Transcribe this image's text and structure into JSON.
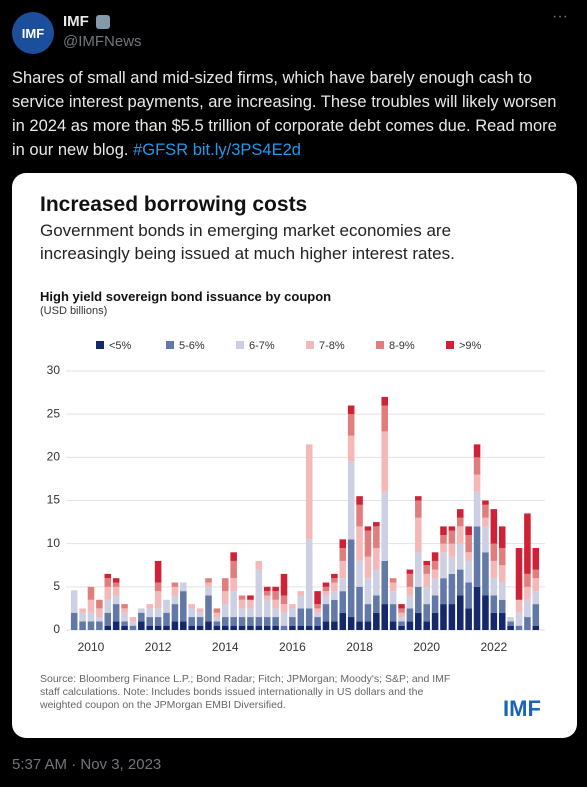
{
  "tweet": {
    "avatar": "IMF",
    "name": "IMF",
    "handle": "@IMFNews",
    "text": "Shares of small and mid-sized firms, which have barely enough cash to service interest payments, are increasing. These troubles will likely worsen in 2024 as more than $5.5 trillion of corporate debt comes due. Read more in our new blog.",
    "hashtag": "#GFSR",
    "link": "bit.ly/3PS4E2d",
    "timestamp": "5:37 AM · Nov 3, 2023"
  },
  "card": {
    "title": "Increased borrowing costs",
    "subtitle": "Government bonds in emerging market economies are increasingly being issued at much higher interest rates.",
    "source": "Source: Bloomberg Finance L.P.; Bond Radar; Fitch; JPMorgan; Moody's; S&P; and IMF staff calculations. Note: Includes bonds issued internationally in US dollars and the weighted coupon on the JPMorgan EMBI Diversified.",
    "logo": "IMF"
  },
  "chart_data": {
    "type": "bar",
    "stacked": true,
    "title": "High yield sovereign bond issuance by coupon",
    "ylabel": "(USD billions)",
    "categories": [
      null,
      null,
      "2010",
      null,
      null,
      null,
      null,
      null,
      null,
      null,
      "2012",
      null,
      null,
      null,
      null,
      null,
      null,
      null,
      "2014",
      null,
      null,
      null,
      null,
      null,
      null,
      null,
      "2016",
      null,
      null,
      null,
      null,
      null,
      null,
      null,
      "2018",
      null,
      null,
      null,
      null,
      null,
      null,
      null,
      "2020",
      null,
      null,
      null,
      null,
      null,
      null,
      null,
      "2022",
      null,
      null,
      null,
      null,
      null
    ],
    "ylim": [
      0,
      30
    ],
    "yticks": [
      0,
      5,
      10,
      15,
      20,
      25,
      30
    ],
    "grid": true,
    "legend": "top",
    "series": [
      {
        "name": "<5%",
        "color": "#14286b",
        "values": [
          0,
          0,
          0,
          0,
          0.5,
          1,
          0.5,
          0,
          1,
          0.5,
          0.5,
          0.5,
          1,
          1,
          0.5,
          0.5,
          1,
          0.5,
          0.5,
          0.5,
          0.5,
          0.5,
          0.5,
          0.5,
          0.5,
          0,
          0.5,
          0.5,
          0.5,
          0.5,
          1,
          1,
          2,
          1.5,
          1,
          1,
          2,
          3,
          1,
          0.5,
          1,
          2,
          1,
          2,
          3,
          3,
          4,
          2.5,
          5,
          4,
          2,
          2,
          0.5,
          0,
          0,
          0.5
        ]
      },
      {
        "name": "5-6%",
        "color": "#6279a8",
        "values": [
          2,
          1,
          1,
          1,
          1.5,
          2,
          0.5,
          0.5,
          1,
          1,
          1,
          1.5,
          2,
          3.5,
          1,
          1,
          3,
          0.5,
          1,
          1,
          1,
          1,
          1,
          1,
          1,
          0.5,
          1,
          2,
          2,
          1,
          2,
          2.5,
          2.5,
          9,
          4,
          2,
          2,
          5,
          2,
          0.5,
          1.5,
          3,
          2,
          2,
          3,
          3.5,
          3,
          3,
          7,
          5,
          2,
          1.5,
          0.5,
          0.5,
          1.5,
          2.5
        ]
      },
      {
        "name": "6-7%",
        "color": "#ccd0e2",
        "values": [
          2.6,
          1,
          1,
          0.5,
          1.5,
          1,
          1,
          0.5,
          0.5,
          1,
          1,
          1.5,
          1,
          1,
          1,
          0.5,
          1,
          0.5,
          1.5,
          3,
          1,
          1,
          5.5,
          2,
          1,
          1.5,
          1,
          1.5,
          8,
          0.5,
          1,
          1,
          1.5,
          9,
          3,
          3,
          3,
          8,
          1.5,
          0.5,
          1.5,
          4,
          2,
          2,
          3,
          2,
          3,
          2.5,
          4,
          3,
          2,
          2,
          0.5,
          1.5,
          2,
          1.5
        ]
      },
      {
        "name": "7-8%",
        "color": "#f4b8b8",
        "values": [
          0,
          0.5,
          1.5,
          1,
          1.5,
          1,
          0.5,
          0.5,
          0,
          0.5,
          2,
          0,
          1,
          0,
          0.5,
          0.5,
          0.5,
          0.5,
          1.5,
          1.5,
          1,
          1,
          1,
          0.5,
          1,
          1,
          0.5,
          0.5,
          11,
          0.5,
          0.5,
          1,
          2,
          3,
          4,
          2.5,
          2.5,
          7,
          1,
          0.5,
          1,
          4,
          1.5,
          1,
          1,
          1.5,
          2,
          1,
          2,
          1,
          2,
          2,
          0,
          1.5,
          1.5,
          1.5
        ]
      },
      {
        "name": "8-9%",
        "color": "#e07e7e",
        "values": [
          0,
          0,
          1.5,
          1,
          1,
          0.5,
          0.5,
          0,
          0,
          0,
          1,
          0,
          0.5,
          0,
          0,
          0,
          0.5,
          0.5,
          1.5,
          2,
          0.5,
          0,
          0,
          0.5,
          1,
          1,
          0,
          0,
          0,
          0.5,
          0.5,
          0.5,
          1.5,
          2.5,
          2.5,
          3,
          2.5,
          3,
          0.5,
          0.5,
          1.5,
          2,
          1,
          1,
          1,
          1.5,
          1,
          2,
          2,
          1.5,
          2,
          2,
          0,
          0,
          1.5,
          1
        ]
      },
      {
        "name": ">9%",
        "color": "#cf2236",
        "values": [
          0,
          0,
          0,
          0,
          0.5,
          0.5,
          0,
          0,
          0,
          0,
          2.5,
          0,
          0,
          0,
          0,
          0,
          0,
          0,
          0,
          1,
          0,
          0.5,
          0,
          0.5,
          0.5,
          2.5,
          0,
          0,
          0,
          1.5,
          0.5,
          0.5,
          1,
          1,
          1,
          0.5,
          0.5,
          1,
          0,
          0.5,
          0.5,
          0.5,
          0.5,
          1,
          1,
          0.5,
          1,
          1,
          1.5,
          0.5,
          4,
          2.5,
          0,
          6,
          7,
          2.5
        ]
      }
    ]
  }
}
